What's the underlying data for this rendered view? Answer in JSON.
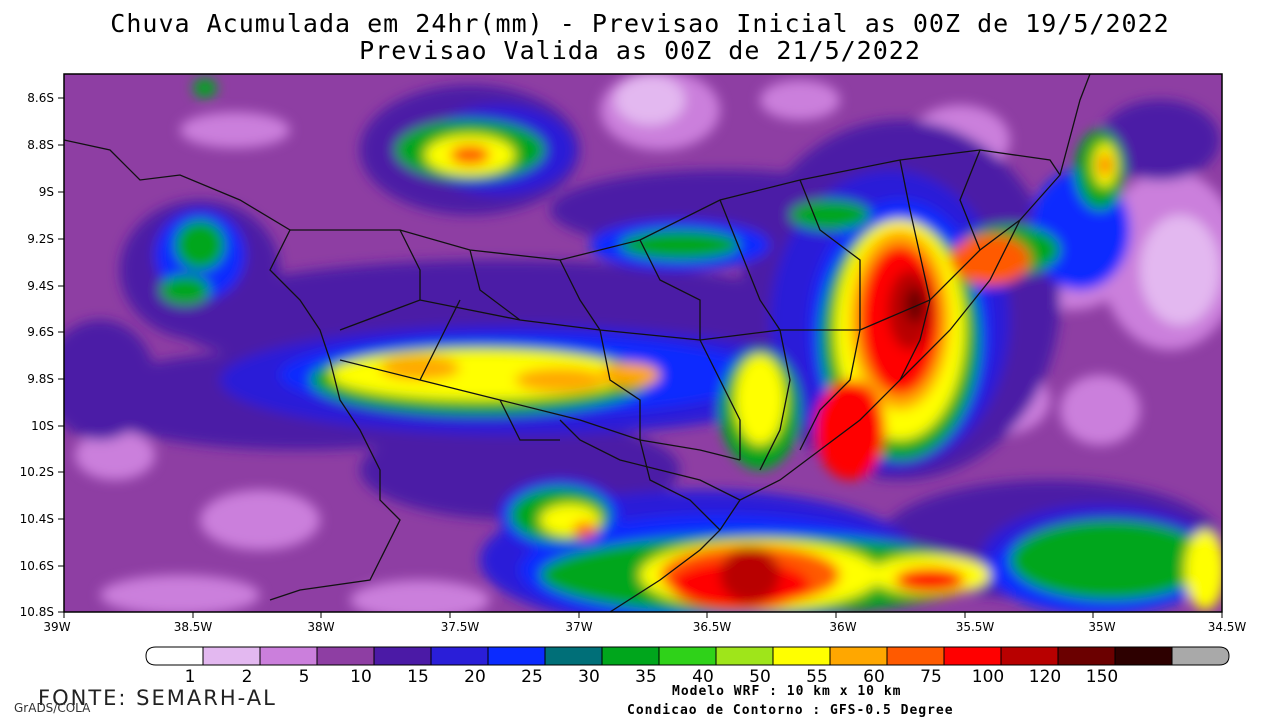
{
  "title_line1": "Chuva Acumulada em 24hr(mm) - Previsao Inicial as 00Z de 19/5/2022",
  "title_line2": "Previsao Valida as 00Z de 21/5/2022",
  "lat_labels": [
    "8.6S",
    "8.8S",
    "9S",
    "9.2S",
    "9.4S",
    "9.6S",
    "9.8S",
    "10S",
    "10.2S",
    "10.4S",
    "10.6S",
    "10.8S"
  ],
  "lon_labels": [
    "39W",
    "38.5W",
    "38W",
    "37.5W",
    "37W",
    "36.5W",
    "36W",
    "35.5W",
    "35W",
    "34.5W"
  ],
  "legend": {
    "labels": [
      "1",
      "2",
      "5",
      "10",
      "15",
      "20",
      "25",
      "30",
      "35",
      "40",
      "50",
      "55",
      "60",
      "75",
      "100",
      "120",
      "150"
    ],
    "colors": [
      "#ffffff",
      "#e3b8f0",
      "#cb7fdc",
      "#8e3ea3",
      "#4b1aa6",
      "#2a1ed8",
      "#0b2bff",
      "#006f78",
      "#00a61c",
      "#2fd219",
      "#9fe51a",
      "#ffff00",
      "#ffa700",
      "#ff5a00",
      "#ff0000",
      "#b80000",
      "#6b0000",
      "#2d0000",
      "#a9a9a9"
    ]
  },
  "fonte": "FONTE: SEMARH-AL",
  "grads": "GrADS/COLA",
  "model_line1": "Modelo WRF : 10 km x 10 km",
  "model_line2": "Condicao de Contorno : GFS-0.5 Degree"
}
